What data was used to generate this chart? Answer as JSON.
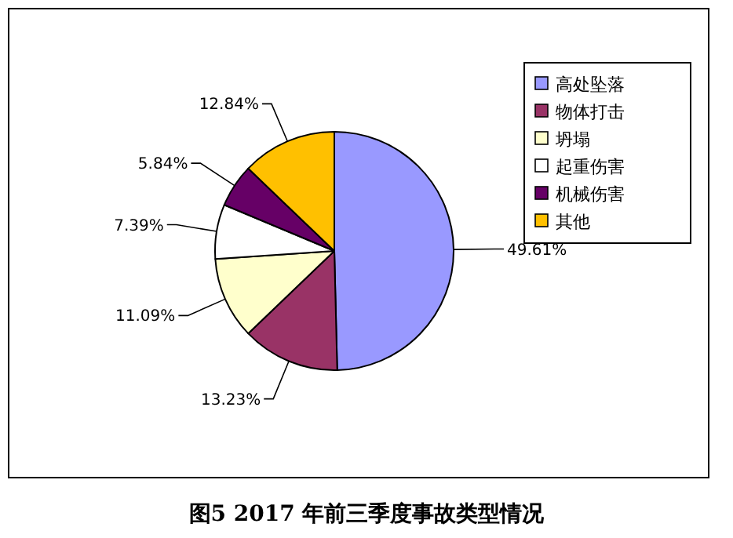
{
  "chart_data": {
    "type": "pie",
    "title": "图5   2017 年前三季度事故类型情况",
    "categories": [
      "高处坠落",
      "物体打击",
      "坍塌",
      "起重伤害",
      "机械伤害",
      "其他"
    ],
    "values": [
      49.61,
      13.23,
      11.09,
      7.39,
      5.84,
      12.84
    ],
    "value_labels": [
      "49.61%",
      "13.23%",
      "11.09%",
      "7.39%",
      "5.84%",
      "12.84%"
    ],
    "colors": [
      "#9999ff",
      "#993366",
      "#ffffcc",
      "#ffffff",
      "#660066",
      "#ffc000"
    ],
    "legend": "right"
  }
}
